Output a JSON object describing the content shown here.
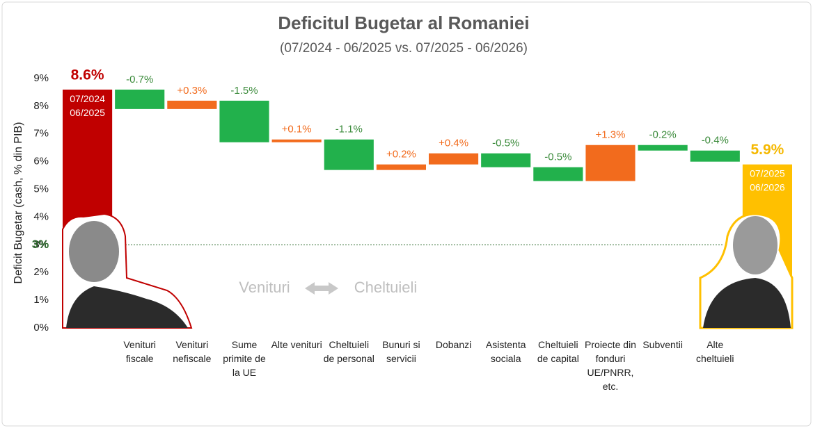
{
  "chart_data": {
    "type": "waterfall",
    "title": "Deficitul Bugetar al Romaniei",
    "subtitle": "(07/2024 - 06/2025 vs. 07/2025 - 06/2026)",
    "y_label": "Deficit Bugetar (cash, % din PIB)",
    "categories": [
      null,
      "Venituri fiscale",
      "Venituri nefiscale",
      "Sume primite de la UE",
      "Alte venituri",
      "Cheltuieli de personal",
      "Bunuri si servicii",
      "Dobanzi",
      "Asistenta sociala",
      "Cheltuieli de capital",
      "Proiecte din fonduri UE/PNRR, etc.",
      "Subventii",
      "Alte cheltuieli",
      null
    ],
    "values": [
      8.6,
      -0.7,
      0.3,
      -1.5,
      0.1,
      -1.1,
      0.2,
      0.4,
      -0.5,
      -0.5,
      1.3,
      -0.2,
      -0.4,
      5.9
    ],
    "value_labels": [
      "8.6%",
      "-0.7%",
      "+0.3%",
      "-1.5%",
      "+0.1%",
      "-1.1%",
      "+0.2%",
      "+0.4%",
      "-0.5%",
      "-0.5%",
      "+1.3%",
      "-0.2%",
      "-0.4%",
      "5.9%"
    ],
    "total_labels": [
      "07/2024 06/2025",
      "07/2025 06/2026"
    ],
    "colors": {
      "start": "#c00000",
      "end": "#ffc000",
      "increase": "#f26b1d",
      "decrease": "#22b14c"
    },
    "text_colors": {
      "start": "#c00000",
      "end": "#f5b800",
      "increase": "#f26b1d",
      "decrease": "#3a8a3a"
    },
    "ylim": [
      0,
      9
    ],
    "yticks": [
      {
        "value": 0,
        "label": "0%"
      },
      {
        "value": 1,
        "label": "1%"
      },
      {
        "value": 2,
        "label": "2%"
      },
      {
        "value": 3,
        "label": "3%"
      },
      {
        "value": 4,
        "label": "4%"
      },
      {
        "value": 5,
        "label": "5%"
      },
      {
        "value": 6,
        "label": "6%"
      },
      {
        "value": 7,
        "label": "7%"
      },
      {
        "value": 8,
        "label": "8%"
      },
      {
        "value": 9,
        "label": "9%"
      }
    ],
    "threshold": {
      "value": 3,
      "label": "3%"
    },
    "annotations": [
      "Venituri",
      "Cheltuieli"
    ]
  }
}
